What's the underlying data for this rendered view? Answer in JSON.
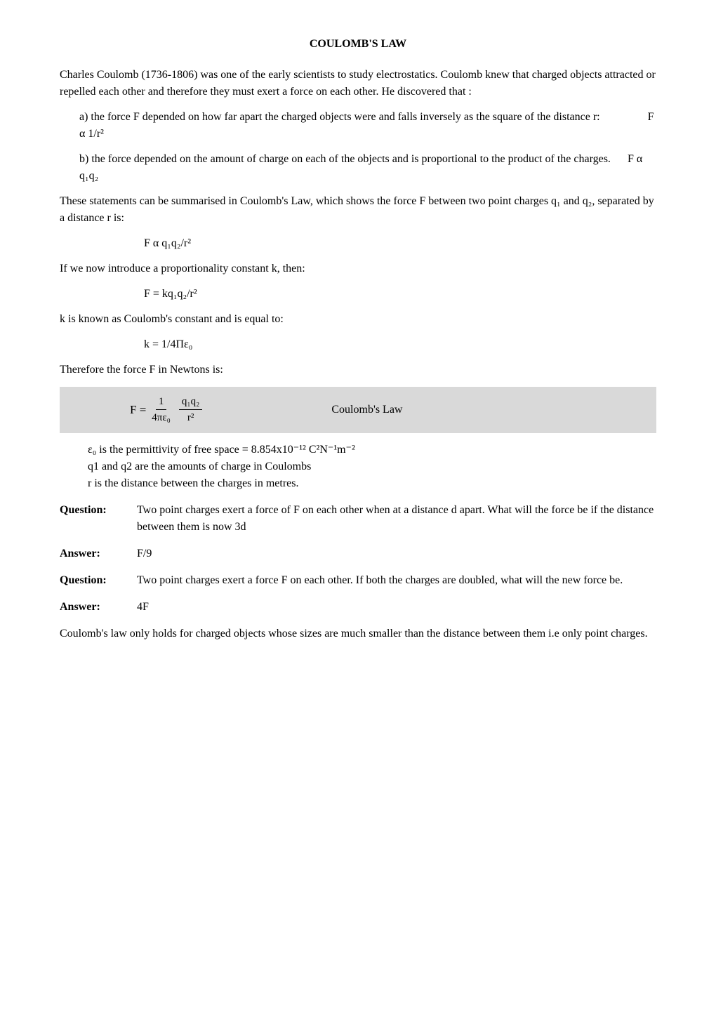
{
  "title": "COULOMB'S LAW",
  "intro": "Charles Coulomb (1736-1806) was one of the early scientists to study electrostatics. Coulomb knew that charged objects attracted or repelled each other and therefore they must exert a force on each other. He discovered that :",
  "item_a_text": "a) the force F depended on how far apart the charged objects were and falls inversely as the square of the distance r:",
  "item_a_formula": "F α 1/r²",
  "item_b_text": "b) the force depended on the amount of charge on each of the objects and is proportional to the product of the charges.",
  "item_b_formula": "F α q₁q₂",
  "para_summary": "These statements can be summarised in Coulomb's Law, which shows the force F between two point charges q₁ and q₂, separated by a distance r is:",
  "formula_1": "F α q₁q₂/r²",
  "para_constant": "If we now introduce a proportionality constant k, then:",
  "formula_2": "F = kq₁q₂/r²",
  "para_k": "k is known as Coulomb's constant and is equal to:",
  "formula_3": "k = 1/4Πε₀",
  "para_therefore": "Therefore the force F in Newtons is:",
  "coulomb_formula": {
    "F_eq": "F =",
    "frac1_num": "1",
    "frac1_den": "4πε₀",
    "frac2_num": "q₁q₂",
    "frac2_den": "r²",
    "label": "Coulomb's Law"
  },
  "epsilon_line": "ε₀ is the permittivity of free space = 8.854x10⁻¹² C²N⁻¹m⁻²",
  "q_line": "q1 and q2 are the amounts of charge in Coulombs",
  "r_line": "r is the distance between the charges in metres.",
  "question1_label": "Question:",
  "question1_text": "Two point charges exert a force of F on each other when at a distance d apart. What will the force be if the distance between them is now 3d",
  "answer1_label": "Answer:",
  "answer1_text": "F/9",
  "question2_label": "Question:",
  "question2_text": "Two point charges exert a force F on each other. If both the charges are doubled, what will the new force be.",
  "answer2_label": "Answer:",
  "answer2_text": "4F",
  "final_para": "Coulomb's law only holds for charged objects whose sizes are much smaller than the distance between them i.e only point charges."
}
